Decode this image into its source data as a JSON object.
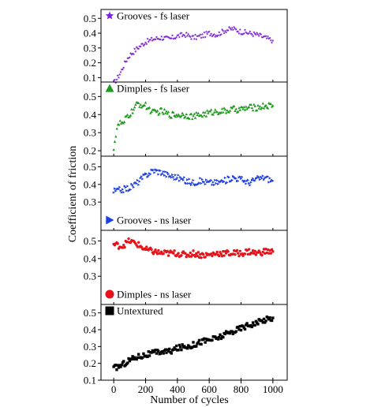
{
  "chart_data": {
    "type": "scatter",
    "xlabel": "Number of cycles",
    "ylabel": "Coefficient of friction",
    "xlim": [
      -80,
      1090
    ],
    "x_ticks": [
      "0",
      "200",
      "400",
      "600",
      "800",
      "1000"
    ],
    "x_tick_values": [
      0,
      200,
      400,
      600,
      800,
      1000
    ],
    "panels": [
      {
        "name": "Grooves - fs laser",
        "marker": "star",
        "color": "#7b22d6",
        "legend_position": "top-left",
        "ylim": [
          0.07,
          0.56
        ],
        "y_ticks": [
          "0.1",
          "0.2",
          "0.3",
          "0.4",
          "0.5"
        ],
        "y_tick_values": [
          0.1,
          0.2,
          0.3,
          0.4,
          0.5
        ],
        "x": [
          0,
          25,
          50,
          75,
          100,
          150,
          200,
          250,
          300,
          350,
          400,
          450,
          500,
          550,
          600,
          650,
          700,
          750,
          800,
          850,
          900,
          950,
          1000
        ],
        "y": [
          0.06,
          0.1,
          0.15,
          0.21,
          0.25,
          0.3,
          0.34,
          0.36,
          0.37,
          0.36,
          0.38,
          0.39,
          0.37,
          0.38,
          0.4,
          0.39,
          0.42,
          0.43,
          0.41,
          0.4,
          0.39,
          0.37,
          0.35
        ]
      },
      {
        "name": "Dimples - fs laser",
        "marker": "triangle-up",
        "color": "#1e9a1e",
        "legend_position": "top-left",
        "ylim": [
          0.17,
          0.58
        ],
        "y_ticks": [
          "0.2",
          "0.3",
          "0.4",
          "0.5"
        ],
        "y_tick_values": [
          0.2,
          0.3,
          0.4,
          0.5
        ],
        "x": [
          0,
          20,
          40,
          60,
          80,
          100,
          125,
          150,
          200,
          250,
          300,
          350,
          400,
          450,
          500,
          550,
          600,
          650,
          700,
          750,
          800,
          850,
          900,
          950,
          1000
        ],
        "y": [
          0.22,
          0.32,
          0.36,
          0.34,
          0.39,
          0.4,
          0.43,
          0.46,
          0.45,
          0.41,
          0.42,
          0.4,
          0.4,
          0.4,
          0.39,
          0.4,
          0.41,
          0.42,
          0.42,
          0.43,
          0.43,
          0.44,
          0.44,
          0.45,
          0.45
        ]
      },
      {
        "name": "Grooves - ns laser",
        "marker": "triangle-right",
        "color": "#1f3fe6",
        "legend_position": "bottom-left",
        "ylim": [
          0.14,
          0.56
        ],
        "y_ticks": [
          "0.3",
          "0.4",
          "0.5"
        ],
        "y_tick_values": [
          0.3,
          0.4,
          0.5
        ],
        "x": [
          0,
          50,
          100,
          150,
          200,
          250,
          300,
          350,
          400,
          450,
          500,
          550,
          600,
          650,
          700,
          750,
          800,
          850,
          900,
          950,
          1000
        ],
        "y": [
          0.36,
          0.37,
          0.38,
          0.41,
          0.45,
          0.48,
          0.47,
          0.45,
          0.44,
          0.42,
          0.41,
          0.42,
          0.41,
          0.41,
          0.42,
          0.44,
          0.43,
          0.41,
          0.43,
          0.44,
          0.42
        ]
      },
      {
        "name": "Dimples - ns laser",
        "marker": "circle",
        "color": "#e5141b",
        "legend_position": "bottom-left",
        "ylim": [
          0.14,
          0.56
        ],
        "y_ticks": [
          "0.3",
          "0.4",
          "0.5"
        ],
        "y_tick_values": [
          0.3,
          0.4,
          0.5
        ],
        "x": [
          0,
          50,
          100,
          150,
          200,
          250,
          300,
          350,
          400,
          450,
          500,
          550,
          600,
          650,
          700,
          750,
          800,
          850,
          900,
          950,
          1000
        ],
        "y": [
          0.48,
          0.47,
          0.5,
          0.48,
          0.45,
          0.44,
          0.43,
          0.43,
          0.43,
          0.42,
          0.43,
          0.42,
          0.42,
          0.43,
          0.43,
          0.43,
          0.43,
          0.44,
          0.43,
          0.44,
          0.44
        ]
      },
      {
        "name": "Untextured",
        "marker": "square",
        "color": "#000000",
        "legend_position": "top-left",
        "ylim": [
          0.1,
          0.55
        ],
        "y_ticks": [
          "0.1",
          "0.2",
          "0.3",
          "0.4",
          "0.5"
        ],
        "y_tick_values": [
          0.1,
          0.2,
          0.3,
          0.4,
          0.5
        ],
        "x": [
          0,
          50,
          100,
          150,
          200,
          250,
          300,
          350,
          400,
          450,
          500,
          550,
          600,
          650,
          700,
          750,
          800,
          850,
          900,
          950,
          1000
        ],
        "y": [
          0.17,
          0.19,
          0.22,
          0.24,
          0.25,
          0.26,
          0.27,
          0.27,
          0.29,
          0.3,
          0.31,
          0.33,
          0.34,
          0.35,
          0.37,
          0.39,
          0.41,
          0.43,
          0.44,
          0.46,
          0.47
        ]
      }
    ]
  }
}
